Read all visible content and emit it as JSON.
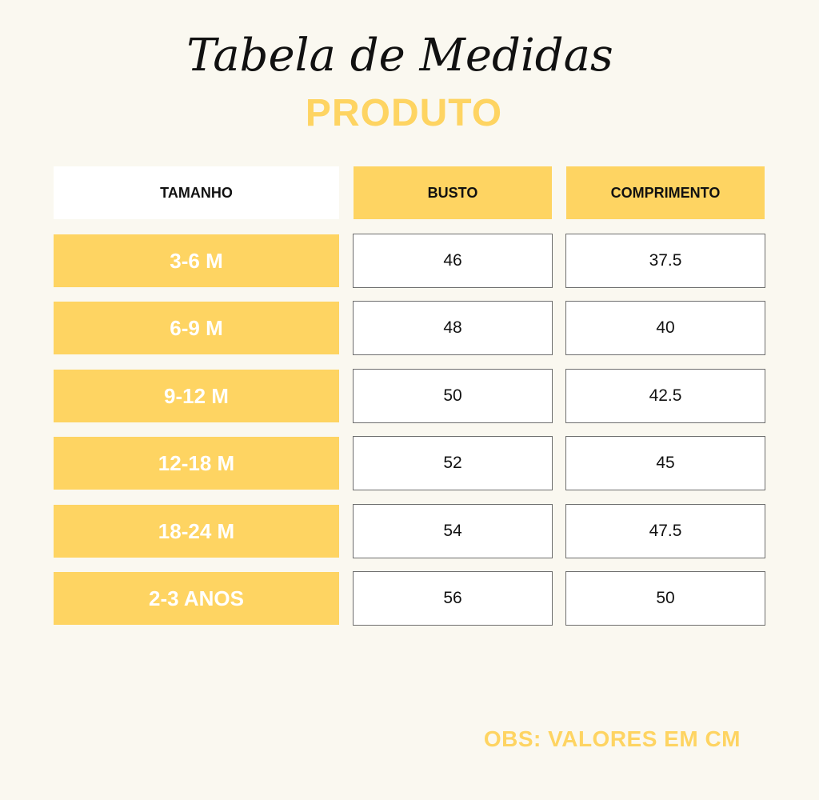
{
  "title": "Tabela de Medidas",
  "subtitle": "PRODUTO",
  "headers": {
    "size": "TAMANHO",
    "busto": "BUSTO",
    "comprimento": "COMPRIMENTO"
  },
  "rows": [
    {
      "size": "3-6 M",
      "busto": "46",
      "comprimento": "37.5"
    },
    {
      "size": "6-9 M",
      "busto": "48",
      "comprimento": "40"
    },
    {
      "size": "9-12 M",
      "busto": "50",
      "comprimento": "42.5"
    },
    {
      "size": "12-18 M",
      "busto": "52",
      "comprimento": "45"
    },
    {
      "size": "18-24 M",
      "busto": "54",
      "comprimento": "47.5"
    },
    {
      "size": "2-3 ANOS",
      "busto": "56",
      "comprimento": "50"
    }
  ],
  "note": "OBS: VALORES EM CM",
  "colors": {
    "background": "#faf8f0",
    "accent": "#fed462",
    "text": "#111111"
  }
}
